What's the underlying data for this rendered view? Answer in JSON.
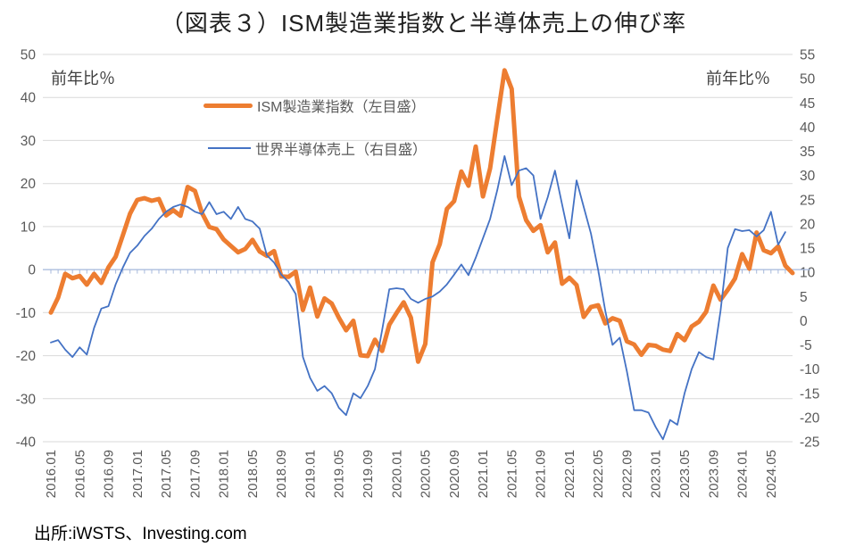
{
  "title": "（図表３）ISM製造業指数と半導体売上の伸び率",
  "axis_units": {
    "left": "前年比％",
    "right": "前年比％"
  },
  "legend": [
    {
      "label": "ISM製造業指数（左目盛）",
      "color": "#ED7D31"
    },
    {
      "label": "世界半導体売上（右目盛）",
      "color": "#4472C4"
    }
  ],
  "source": "出所:iWSTS、Investing.com",
  "colors": {
    "ism_line": "#ED7D31",
    "semiconductor_line": "#4472C4",
    "gridline": "#D9D9D9",
    "category_axis": "#A6B9DC",
    "tick_label": "#595959"
  },
  "chart_data": {
    "type": "line",
    "title": "（図表３）ISM製造業指数と半導体売上の伸び率",
    "x_unit": "month",
    "x_start": "2016.01",
    "x_tick_labels": [
      "2016.01",
      "2016.05",
      "2016.09",
      "2017.01",
      "2017.05",
      "2017.09",
      "2018.01",
      "2018.05",
      "2018.09",
      "2019.01",
      "2019.05",
      "2019.09",
      "2020.01",
      "2020.05",
      "2020.09",
      "2021.01",
      "2021.05",
      "2021.09",
      "2022.01",
      "2022.05",
      "2022.09",
      "2023.01",
      "2023.05",
      "2023.09",
      "2024.01",
      "2024.05"
    ],
    "left_axis": {
      "label": "前年比％",
      "min": -40,
      "max": 50,
      "ticks": [
        50,
        40,
        30,
        20,
        10,
        0,
        -10,
        -20,
        -30,
        -40
      ]
    },
    "right_axis": {
      "label": "前年比％",
      "min": -25,
      "max": 55,
      "ticks": [
        55,
        50,
        45,
        40,
        35,
        30,
        25,
        20,
        15,
        10,
        5,
        0,
        -5,
        -10,
        -15,
        -20,
        -25
      ]
    },
    "grid": true,
    "legend_position": "top-center",
    "series": [
      {
        "name": "ISM製造業指数（左目盛）",
        "axis": "left",
        "color": "#ED7D31",
        "stroke_width": 5,
        "period": "2016.01-2024.08",
        "values": [
          -10.0,
          -6.5,
          -1.0,
          -2.0,
          -1.5,
          -3.5,
          -1.0,
          -3.1,
          0.5,
          3.0,
          8.0,
          13.0,
          16.2,
          16.6,
          16.0,
          16.4,
          12.6,
          13.8,
          12.5,
          19.2,
          18.3,
          13.1,
          9.9,
          9.4,
          7.0,
          5.5,
          4.0,
          4.8,
          6.9,
          4.2,
          3.2,
          4.3,
          -1.6,
          -1.7,
          -0.5,
          -9.4,
          -4.2,
          -10.9,
          -6.7,
          -7.9,
          -11.2,
          -14.1,
          -11.9,
          -19.9,
          -20.1,
          -16.3,
          -18.9,
          -12.8,
          -10.1,
          -7.6,
          -11.2,
          -21.4,
          -17.3,
          1.7,
          5.9,
          14.1,
          15.9,
          22.8,
          19.5,
          28.6,
          17.0,
          23.5,
          35.0,
          46.3,
          42.0,
          17.0,
          11.5,
          9.0,
          10.3,
          4.0,
          6.3,
          -3.3,
          -1.9,
          -3.6,
          -11.0,
          -8.7,
          -8.3,
          -12.5,
          -11.3,
          -11.9,
          -16.7,
          -17.4,
          -19.8,
          -17.5,
          -17.7,
          -18.6,
          -18.9,
          -15.0,
          -16.4,
          -13.2,
          -12.1,
          -9.8,
          -3.7,
          -7.0,
          -4.7,
          -2.1,
          3.6,
          0.2,
          8.6,
          4.5,
          3.8,
          5.4,
          0.9,
          -0.8
        ]
      },
      {
        "name": "世界半導体売上（右目盛）",
        "axis": "right",
        "color": "#4472C4",
        "stroke_width": 1.8,
        "period": "2016.01-2024.07",
        "values": [
          -4.5,
          -4.0,
          -6.0,
          -7.5,
          -5.5,
          -7.0,
          -1.5,
          2.5,
          3.0,
          7.5,
          11.0,
          14.0,
          15.5,
          17.5,
          19.0,
          21.0,
          22.5,
          23.5,
          24.0,
          23.5,
          22.5,
          22.0,
          24.5,
          22.0,
          22.5,
          21.0,
          23.5,
          21.0,
          20.5,
          19.0,
          13.5,
          12.0,
          9.5,
          8.0,
          5.5,
          -7.5,
          -11.8,
          -14.5,
          -13.5,
          -15.0,
          -18.0,
          -19.5,
          -15.0,
          -16.0,
          -13.5,
          -10.0,
          -2.0,
          6.5,
          6.7,
          6.5,
          4.5,
          3.7,
          4.5,
          5.0,
          6.0,
          7.5,
          9.5,
          11.6,
          9.4,
          13.0,
          17.0,
          21.0,
          27.0,
          34.0,
          28.0,
          31.0,
          31.5,
          30.0,
          21.0,
          25.5,
          31.0,
          24.0,
          17.0,
          29.0,
          23.5,
          18.0,
          10.5,
          2.0,
          -5.0,
          -3.5,
          -10.5,
          -18.5,
          -18.5,
          -19.0,
          -22.0,
          -24.5,
          -20.5,
          -21.5,
          -15.0,
          -10.0,
          -6.5,
          -7.5,
          -8.0,
          2.0,
          15.0,
          18.9,
          18.5,
          18.7,
          17.4,
          18.7,
          22.5,
          15.7,
          18.3
        ]
      }
    ]
  }
}
